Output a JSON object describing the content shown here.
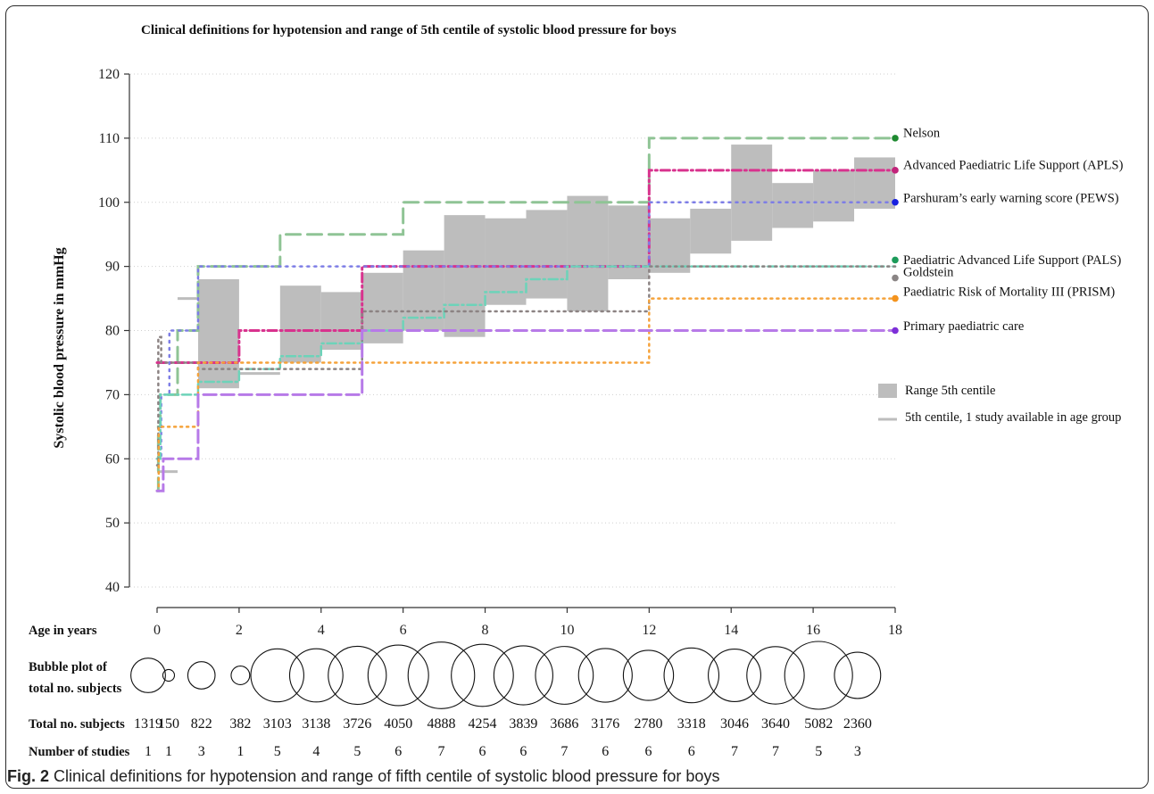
{
  "caption": {
    "label": "Fig. 2",
    "text": "Clinical definitions for hypotension and range of fifth centile of systolic blood pressure for boys"
  },
  "chart_data": {
    "type": "line",
    "title": "Clinical definitions for hypotension and range of 5th centile of systolic blood pressure for boys",
    "xlabel": "Age in years",
    "ylabel": "Systolic blood pressure in mmHg",
    "xlim": [
      0,
      18
    ],
    "ylim": [
      40,
      120
    ],
    "xticks": [
      "0",
      "2",
      "4",
      "6",
      "8",
      "10",
      "12",
      "14",
      "16",
      "18"
    ],
    "yticks": [
      "40",
      "50",
      "60",
      "70",
      "80",
      "90",
      "100",
      "110",
      "120"
    ],
    "grid": "horizontal dotted",
    "range_5th_centile": [
      {
        "x0": 1,
        "x1": 2,
        "low": 71,
        "high": 88
      },
      {
        "x0": 3,
        "x1": 4,
        "low": 75,
        "high": 87
      },
      {
        "x0": 4,
        "x1": 5,
        "low": 77,
        "high": 86
      },
      {
        "x0": 5,
        "x1": 6,
        "low": 78,
        "high": 89
      },
      {
        "x0": 6,
        "x1": 7,
        "low": 80,
        "high": 92.5
      },
      {
        "x0": 7,
        "x1": 8,
        "low": 79,
        "high": 98
      },
      {
        "x0": 8,
        "x1": 9,
        "low": 84,
        "high": 97.5
      },
      {
        "x0": 9,
        "x1": 10,
        "low": 85,
        "high": 98.8
      },
      {
        "x0": 10,
        "x1": 11,
        "low": 83,
        "high": 101
      },
      {
        "x0": 11,
        "x1": 12,
        "low": 88,
        "high": 99.5
      },
      {
        "x0": 12,
        "x1": 13,
        "low": 89,
        "high": 97.5
      },
      {
        "x0": 13,
        "x1": 14,
        "low": 92,
        "high": 99
      },
      {
        "x0": 14,
        "x1": 15,
        "low": 94,
        "high": 109
      },
      {
        "x0": 15,
        "x1": 16,
        "low": 96,
        "high": 103
      },
      {
        "x0": 16,
        "x1": 17,
        "low": 97,
        "high": 105
      },
      {
        "x0": 17,
        "x1": 18,
        "low": 99,
        "high": 107
      }
    ],
    "single_study": [
      {
        "x0": 0,
        "x1": 0.5,
        "y": 58
      },
      {
        "x0": 0.5,
        "x1": 1,
        "y": 85
      },
      {
        "x0": 2,
        "x1": 3,
        "y": 73.3
      }
    ],
    "series": [
      {
        "name": "Nelson",
        "color": "#8fc495",
        "dash": "16,8",
        "width": 3,
        "steps": [
          [
            0,
            55
          ],
          [
            0.03,
            65
          ],
          [
            0.08,
            70
          ],
          [
            0.5,
            80
          ],
          [
            1,
            90
          ],
          [
            3,
            95
          ],
          [
            6,
            100
          ],
          [
            12,
            110
          ],
          [
            18,
            110
          ]
        ]
      },
      {
        "name": "Advanced Paediatric Life Support (APLS)",
        "color": "#d8338e",
        "dash": "10,4,2,4",
        "width": 3,
        "steps": [
          [
            0,
            75
          ],
          [
            1,
            75
          ],
          [
            2,
            80
          ],
          [
            5,
            90
          ],
          [
            12,
            105
          ],
          [
            18,
            105
          ]
        ]
      },
      {
        "name": "Parshuram's early warning score (PEWS)",
        "color": "#7d7de6",
        "dash": "2,6",
        "width": 2.5,
        "steps": [
          [
            0,
            60
          ],
          [
            0.1,
            70
          ],
          [
            0.3,
            80
          ],
          [
            1,
            90
          ],
          [
            12,
            100
          ],
          [
            18,
            100
          ]
        ]
      },
      {
        "name": "Paediatric Advanced Life Support (PALS)",
        "color": "#6dd3b9",
        "dash": "10,4,2,4",
        "width": 2.5,
        "steps": [
          [
            0,
            60
          ],
          [
            0.08,
            70
          ],
          [
            1,
            72
          ],
          [
            2,
            74
          ],
          [
            3,
            76
          ],
          [
            4,
            78
          ],
          [
            5,
            80
          ],
          [
            6,
            82
          ],
          [
            7,
            84
          ],
          [
            8,
            86
          ],
          [
            9,
            88
          ],
          [
            10,
            90
          ],
          [
            18,
            90
          ]
        ]
      },
      {
        "name": "Goldstein",
        "color": "#8c8383",
        "dash": "2,5",
        "width": 2.5,
        "steps": [
          [
            0,
            59
          ],
          [
            0.03,
            79
          ],
          [
            0.1,
            75
          ],
          [
            1,
            74
          ],
          [
            5,
            83
          ],
          [
            12,
            90
          ],
          [
            18,
            90
          ]
        ]
      },
      {
        "name": "Paediatric Risk of Mortality III (PRISM)",
        "color": "#f5a23a",
        "dash": "2,5",
        "width": 2.5,
        "steps": [
          [
            0,
            55
          ],
          [
            0.04,
            65
          ],
          [
            1,
            75
          ],
          [
            5,
            75
          ],
          [
            12,
            85
          ],
          [
            18,
            85
          ]
        ]
      },
      {
        "name": "Primary paediatric care",
        "color": "#b77ae8",
        "dash": "14,6",
        "width": 3,
        "steps": [
          [
            0,
            55
          ],
          [
            0.15,
            60
          ],
          [
            1,
            70
          ],
          [
            5,
            80
          ],
          [
            18,
            80
          ]
        ]
      }
    ],
    "end_markers": [
      {
        "name": "Nelson",
        "y": 110,
        "color": "#1e8a30"
      },
      {
        "name": "Advanced Paediatric Life Support (APLS)",
        "y": 105,
        "color": "#c2237a"
      },
      {
        "name": "Parshuram's early warning score (PEWS)",
        "y": 100,
        "color": "#1720e0"
      },
      {
        "name": "Paediatric Advanced Life Support (PALS)",
        "y": 91,
        "color": "#1c9b5a"
      },
      {
        "name": "Goldstein",
        "y": 88.2,
        "color": "#8a8585"
      },
      {
        "name": "Paediatric Risk of Mortality III (PRISM)",
        "y": 85,
        "color": "#f4931d"
      },
      {
        "name": "Primary paediatric care",
        "y": 80,
        "color": "#7d2fd8"
      }
    ],
    "series_labels": [
      {
        "text": "Nelson",
        "y": 110.3
      },
      {
        "text": "Advanced Paediatric Life Support (APLS)",
        "y": 105.3
      },
      {
        "text": "Parshuram’s early warning score (PEWS)",
        "y": 100.2
      },
      {
        "text": "Paediatric Advanced Life Support (PALS)",
        "y": 90.5
      },
      {
        "text": "Goldstein",
        "y": 88.6
      },
      {
        "text": "Paediatric Risk of Mortality III (PRISM)",
        "y": 85.6
      },
      {
        "text": "Primary paediatric care",
        "y": 80.2
      }
    ],
    "legend": [
      {
        "label": "Range 5th centile",
        "kind": "box",
        "color": "#bdbdbd"
      },
      {
        "label": "5th centile, 1 study available in age group",
        "kind": "line",
        "color": "#bdbdbd"
      }
    ],
    "age_groups": [
      {
        "x": 0,
        "total": "1319",
        "studies": "1"
      },
      {
        "x": 0.5,
        "total": "150",
        "studies": "1"
      },
      {
        "x": 1.3,
        "total": "822",
        "studies": "3"
      },
      {
        "x": 2.25,
        "total": "382",
        "studies": "1"
      },
      {
        "x": 3.15,
        "total": "3103",
        "studies": "5"
      },
      {
        "x": 4.1,
        "total": "3138",
        "studies": "4"
      },
      {
        "x": 5.1,
        "total": "3726",
        "studies": "5"
      },
      {
        "x": 6.1,
        "total": "4050",
        "studies": "6"
      },
      {
        "x": 7.15,
        "total": "4888",
        "studies": "7"
      },
      {
        "x": 8.15,
        "total": "4254",
        "studies": "6"
      },
      {
        "x": 9.15,
        "total": "3839",
        "studies": "6"
      },
      {
        "x": 10.15,
        "total": "3686",
        "studies": "7"
      },
      {
        "x": 11.15,
        "total": "3176",
        "studies": "6"
      },
      {
        "x": 12.2,
        "total": "2780",
        "studies": "6"
      },
      {
        "x": 13.25,
        "total": "3318",
        "studies": "6"
      },
      {
        "x": 14.3,
        "total": "3046",
        "studies": "7"
      },
      {
        "x": 15.3,
        "total": "3640",
        "studies": "7"
      },
      {
        "x": 16.35,
        "total": "5082",
        "studies": "5"
      },
      {
        "x": 17.3,
        "total": "2360",
        "studies": "3"
      }
    ],
    "row_labels": {
      "age": "Age in years",
      "bubble_line1": "Bubble plot of",
      "bubble_line2": "total no. subjects",
      "total": "Total no. subjects",
      "studies": "Number of studies"
    }
  }
}
